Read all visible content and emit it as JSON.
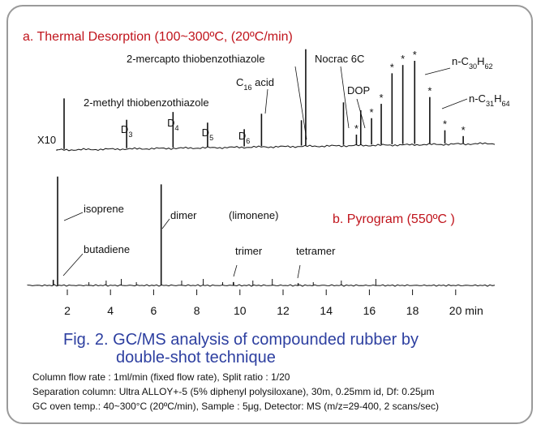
{
  "chart_data": [
    {
      "type": "line",
      "title": "a. Thermal Desorption (100~300ºC, (20ºC/min)",
      "scale_label": "X10",
      "x_unit": "min",
      "xlim": [
        0.3,
        20
      ],
      "peaks": [
        {
          "x": 1.85,
          "h": 0.5
        },
        {
          "x": 4.75,
          "h": 0.28,
          "label": "D",
          "sub": "3"
        },
        {
          "x": 6.9,
          "h": 0.35,
          "label": "D",
          "sub": "4"
        },
        {
          "x": 8.5,
          "h": 0.24,
          "label": "D",
          "sub": "5"
        },
        {
          "x": 10.2,
          "h": 0.17,
          "label": "D",
          "sub": "6"
        },
        {
          "x": 11.0,
          "h": 0.32,
          "label": "2-methyl thiobenzothiazole"
        },
        {
          "x": 12.85,
          "h": 0.25,
          "label": "C",
          "sub": "16",
          "suffix": " acid"
        },
        {
          "x": 13.05,
          "h": 0.95,
          "label": "2-mercapto thiobenzothiazole"
        },
        {
          "x": 14.8,
          "h": 0.42,
          "label": "Nocrac 6C"
        },
        {
          "x": 15.6,
          "h": 0.34,
          "label": "DOP"
        },
        {
          "x": 15.4,
          "h": 0.1,
          "marker": "*"
        },
        {
          "x": 16.1,
          "h": 0.26,
          "marker": "*"
        },
        {
          "x": 16.55,
          "h": 0.4,
          "marker": "*"
        },
        {
          "x": 17.05,
          "h": 0.7,
          "marker": "*"
        },
        {
          "x": 17.55,
          "h": 0.78,
          "marker": "*"
        },
        {
          "x": 18.1,
          "h": 0.82,
          "marker": "*",
          "label": "n-C",
          "sub": "30",
          "label2": "H",
          "sub2": "62"
        },
        {
          "x": 18.8,
          "h": 0.46,
          "marker": "*",
          "label": "n-C",
          "sub": "31",
          "label2": "H",
          "sub2": "64"
        },
        {
          "x": 19.5,
          "h": 0.13,
          "marker": "*"
        },
        {
          "x": 20.35,
          "h": 0.07,
          "marker": "*"
        }
      ]
    },
    {
      "type": "line",
      "title": "b. Pyrogram (550ºC )",
      "x_unit": "min",
      "xlim": [
        0.3,
        20
      ],
      "xticks": [
        2,
        4,
        6,
        8,
        10,
        12,
        14,
        16,
        18,
        20
      ],
      "xtick_labels": [
        "2",
        "4",
        "6",
        "8",
        "10",
        "12",
        "14",
        "16",
        "18",
        "20 min"
      ],
      "peaks": [
        {
          "x": 1.35,
          "h": 0.05,
          "label": "butadiene"
        },
        {
          "x": 1.55,
          "h": 0.98,
          "label": "isoprene"
        },
        {
          "x": 6.35,
          "h": 0.91,
          "label": "dimer"
        },
        {
          "x": 6.35,
          "h": 0.91,
          "label": "(limonene)"
        },
        {
          "x": 9.7,
          "h": 0.03,
          "label": "trimer"
        },
        {
          "x": 12.7,
          "h": 0.02,
          "label": "tetramer"
        }
      ]
    }
  ],
  "caption": {
    "line1": "Fig. 2. GC/MS analysis of compounded rubber by",
    "line2": "double-shot technique"
  },
  "notes": [
    "Column flow rate : 1ml/min (fixed flow rate), Split ratio : 1/20",
    "Separation column: Ultra ALLOY+-5 (5% diphenyl polysiloxane), 30m, 0.25mm id, Df: 0.25μm",
    "GC oven temp.: 40~300°C (20ºC/min), Sample : 5μg, Detector: MS (m/z=29-400, 2 scans/sec)"
  ]
}
